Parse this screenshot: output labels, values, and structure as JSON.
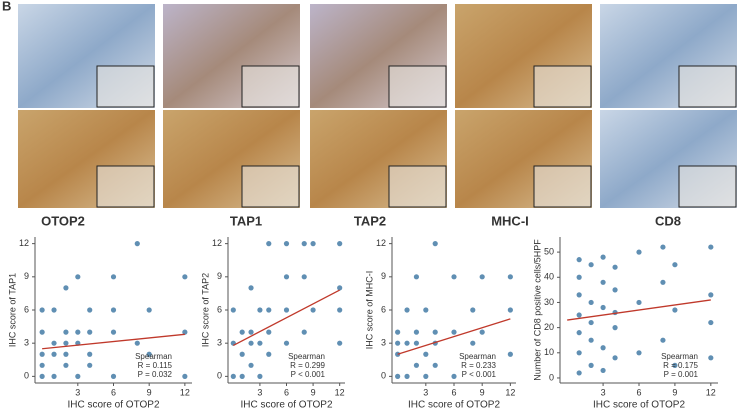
{
  "panel_label": "B",
  "columns": [
    "OTOP2",
    "TAP1",
    "TAP2",
    "MHC-I",
    "CD8"
  ],
  "chart_data": [
    {
      "type": "scatter",
      "xlabel": "IHC score of OTOP2",
      "ylabel": "IHC score of TAP1",
      "color": "#2b6a99",
      "line_color": "#c0392b",
      "x": [
        0,
        0,
        0,
        0,
        1,
        1,
        1,
        2,
        2,
        2,
        2,
        3,
        3,
        3,
        4,
        4,
        4,
        6,
        6,
        6,
        8,
        8,
        9,
        9,
        12,
        12,
        12,
        0,
        1,
        2,
        3,
        4,
        6
      ],
      "values": [
        0,
        2,
        4,
        6,
        0,
        3,
        6,
        1,
        2,
        4,
        8,
        0,
        3,
        9,
        1,
        4,
        6,
        0,
        4,
        9,
        3,
        12,
        2,
        6,
        0,
        4,
        9,
        1,
        2,
        3,
        4,
        2,
        6
      ],
      "trend": {
        "x": [
          0,
          12
        ],
        "y": [
          2.5,
          3.8
        ]
      },
      "xlim": [
        -0.6,
        12.6
      ],
      "ylim": [
        -0.6,
        12.6
      ],
      "xticks": [
        3,
        6,
        9,
        12
      ],
      "yticks": [
        0,
        3,
        6,
        9,
        12
      ],
      "annotations": [
        "Spearman",
        "R = 0.115",
        "P = 0.032"
      ]
    },
    {
      "type": "scatter",
      "xlabel": "IHC score of OTOP2",
      "ylabel": "IHC score of TAP2",
      "color": "#2b6a99",
      "line_color": "#c0392b",
      "x": [
        0,
        0,
        0,
        1,
        1,
        1,
        2,
        2,
        2,
        3,
        3,
        3,
        4,
        4,
        4,
        6,
        6,
        6,
        6,
        8,
        8,
        8,
        9,
        9,
        12,
        12,
        12,
        12,
        2,
        4
      ],
      "values": [
        0,
        3,
        6,
        0,
        2,
        4,
        1,
        4,
        8,
        0,
        3,
        6,
        2,
        6,
        12,
        3,
        6,
        9,
        12,
        4,
        9,
        12,
        6,
        12,
        3,
        6,
        8,
        12,
        3,
        4
      ],
      "trend": {
        "x": [
          0,
          12
        ],
        "y": [
          2.8,
          7.8
        ]
      },
      "xlim": [
        -0.6,
        12.6
      ],
      "ylim": [
        -0.6,
        12.6
      ],
      "xticks": [
        3,
        6,
        9,
        12
      ],
      "yticks": [
        0,
        3,
        6,
        9,
        12
      ],
      "annotations": [
        "Spearman",
        "R = 0.299",
        "P < 0.001"
      ]
    },
    {
      "type": "scatter",
      "xlabel": "IHC score of OTOP2",
      "ylabel": "IHC score of MHC-I",
      "color": "#2b6a99",
      "line_color": "#c0392b",
      "x": [
        0,
        0,
        0,
        1,
        1,
        1,
        2,
        2,
        2,
        3,
        3,
        3,
        4,
        4,
        4,
        6,
        6,
        6,
        8,
        8,
        9,
        9,
        12,
        12,
        12,
        0,
        2,
        4
      ],
      "values": [
        0,
        2,
        4,
        0,
        3,
        6,
        1,
        4,
        9,
        0,
        2,
        6,
        1,
        4,
        12,
        0,
        4,
        9,
        3,
        6,
        4,
        9,
        2,
        6,
        9,
        3,
        3,
        3
      ],
      "trend": {
        "x": [
          0,
          12
        ],
        "y": [
          2,
          5.2
        ]
      },
      "xlim": [
        -0.6,
        12.6
      ],
      "ylim": [
        -0.6,
        12.6
      ],
      "xticks": [
        3,
        6,
        9,
        12
      ],
      "yticks": [
        0,
        3,
        6,
        9,
        12
      ],
      "annotations": [
        "Spearman",
        "R = 0.233",
        "P < 0.001"
      ]
    },
    {
      "type": "scatter",
      "xlabel": "IHC score of OTOP2",
      "ylabel": "Number of CD8 positive cells/5HPF",
      "color": "#2b6a99",
      "line_color": "#c0392b",
      "x": [
        1,
        1,
        1,
        1,
        1,
        1,
        1,
        2,
        2,
        2,
        2,
        2,
        3,
        3,
        3,
        3,
        3,
        4,
        4,
        4,
        4,
        4,
        6,
        6,
        6,
        8,
        8,
        8,
        9,
        9,
        9,
        12,
        12,
        12,
        12
      ],
      "values": [
        2,
        10,
        18,
        25,
        33,
        40,
        47,
        5,
        15,
        22,
        30,
        45,
        3,
        12,
        28,
        38,
        48,
        8,
        20,
        26,
        35,
        44,
        10,
        30,
        50,
        15,
        38,
        52,
        5,
        27,
        45,
        8,
        22,
        33,
        52
      ],
      "trend": {
        "x": [
          0,
          12
        ],
        "y": [
          23,
          31
        ]
      },
      "xlim": [
        -0.6,
        12.6
      ],
      "ylim": [
        -2,
        56
      ],
      "xticks": [
        3,
        6,
        9,
        12
      ],
      "yticks": [
        0,
        10,
        20,
        30,
        40,
        50
      ],
      "annotations": [
        "Spearman",
        "R = 0.175",
        "P = 0.001"
      ]
    }
  ]
}
